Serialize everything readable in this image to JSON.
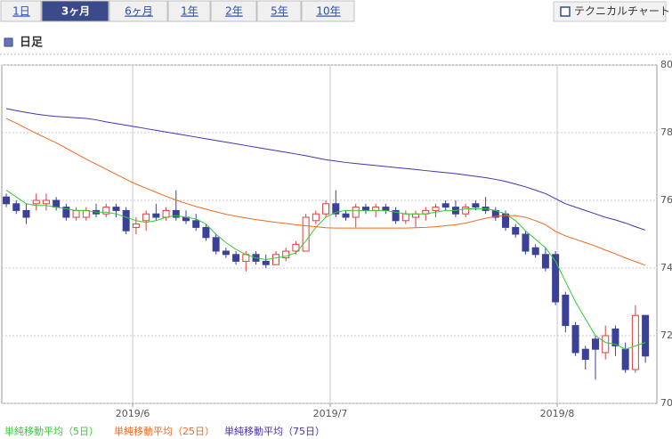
{
  "buttons": [
    "1日",
    "3ヶ月",
    "6ヶ月",
    "1年",
    "2年",
    "5年",
    "10年"
  ],
  "tool_button": "テクニカルチャート",
  "section_title": "日足",
  "chart_data": {
    "type": "candlestick",
    "categories": [
      null,
      null,
      null,
      null,
      null,
      null,
      null,
      null,
      null,
      null,
      null,
      null,
      null,
      null,
      null,
      null,
      null,
      null,
      null,
      null,
      null,
      null,
      null,
      null,
      null,
      null,
      null,
      null,
      null,
      null,
      null,
      null,
      null,
      null,
      null,
      null,
      null,
      null,
      null,
      null,
      null,
      null,
      null,
      null,
      null,
      null,
      null,
      null,
      null,
      null,
      null,
      null,
      null,
      null,
      null,
      null,
      null,
      null,
      null,
      null,
      null,
      null,
      null,
      null,
      null
    ],
    "open": [
      76.1,
      75.9,
      75.7,
      75.9,
      75.9,
      76.0,
      75.8,
      75.5,
      75.5,
      75.7,
      75.6,
      75.8,
      75.7,
      75.2,
      75.4,
      75.6,
      75.5,
      75.7,
      75.5,
      75.4,
      75.2,
      74.9,
      74.5,
      74.4,
      74.2,
      74.4,
      74.2,
      74.1,
      74.3,
      74.5,
      74.5,
      75.4,
      75.6,
      75.9,
      75.6,
      75.5,
      75.8,
      75.7,
      75.8,
      75.7,
      75.4,
      75.5,
      75.6,
      75.7,
      75.9,
      75.8,
      75.6,
      75.9,
      75.8,
      75.7,
      75.6,
      75.2,
      75.0,
      74.6,
      74.4,
      74.4,
      73.2,
      72.3,
      71.6,
      71.9,
      71.5,
      72.2,
      71.6,
      71.0,
      72.6
    ],
    "high": [
      76.2,
      76.0,
      75.9,
      76.2,
      76.2,
      76.1,
      75.9,
      75.8,
      75.8,
      75.9,
      75.9,
      75.9,
      75.8,
      75.5,
      75.7,
      75.9,
      75.8,
      76.3,
      75.7,
      75.6,
      75.3,
      75.0,
      74.6,
      74.5,
      74.5,
      74.5,
      74.4,
      74.5,
      74.6,
      74.8,
      75.6,
      75.7,
      76.0,
      76.3,
      75.7,
      75.9,
      75.9,
      75.9,
      75.9,
      75.8,
      75.7,
      75.7,
      75.8,
      75.9,
      76.0,
      76.0,
      75.9,
      76.0,
      76.1,
      75.8,
      75.7,
      75.3,
      75.1,
      74.7,
      74.6,
      74.5,
      73.3,
      72.4,
      71.7,
      72.0,
      72.3,
      72.3,
      71.8,
      72.9,
      72.6
    ],
    "low": [
      75.8,
      75.6,
      75.3,
      75.7,
      75.7,
      75.7,
      75.4,
      75.4,
      75.4,
      75.5,
      75.5,
      75.5,
      75.0,
      75.0,
      75.1,
      75.4,
      75.4,
      75.4,
      75.3,
      75.1,
      74.8,
      74.4,
      74.3,
      74.1,
      73.9,
      74.1,
      74.0,
      74.1,
      74.2,
      74.4,
      74.5,
      75.3,
      75.5,
      75.5,
      75.4,
      75.2,
      75.6,
      75.5,
      75.6,
      75.3,
      75.3,
      75.2,
      75.4,
      75.5,
      75.7,
      75.5,
      75.5,
      75.7,
      75.6,
      75.4,
      75.1,
      74.9,
      74.4,
      74.3,
      73.9,
      72.9,
      72.1,
      71.4,
      71.0,
      70.7,
      71.3,
      71.4,
      70.9,
      70.9,
      71.2
    ],
    "close": [
      75.9,
      75.7,
      75.5,
      76.0,
      76.0,
      75.8,
      75.5,
      75.7,
      75.7,
      75.6,
      75.8,
      75.7,
      75.1,
      75.3,
      75.6,
      75.5,
      75.7,
      75.5,
      75.4,
      75.2,
      74.9,
      74.5,
      74.4,
      74.2,
      74.4,
      74.2,
      74.1,
      74.4,
      74.5,
      74.7,
      75.5,
      75.6,
      75.9,
      75.6,
      75.5,
      75.8,
      75.7,
      75.8,
      75.7,
      75.4,
      75.6,
      75.6,
      75.7,
      75.8,
      75.8,
      75.6,
      75.8,
      75.8,
      75.7,
      75.5,
      75.2,
      75.0,
      74.5,
      74.4,
      74.0,
      73.0,
      72.3,
      71.5,
      71.3,
      71.6,
      72.0,
      71.7,
      71.0,
      72.6,
      71.4
    ],
    "up_color": "#e03c3c",
    "down_color": "#3b4199",
    "series": [
      {
        "name": "単純移動平均（5日）",
        "color": "#33cc33",
        "values": [
          76.3,
          76.1,
          75.9,
          75.85,
          75.85,
          75.8,
          75.75,
          75.7,
          75.7,
          75.65,
          75.65,
          75.6,
          75.5,
          75.4,
          75.35,
          75.4,
          75.5,
          75.55,
          75.5,
          75.45,
          75.3,
          75.0,
          74.75,
          74.55,
          74.4,
          74.3,
          74.25,
          74.3,
          74.35,
          74.45,
          74.8,
          75.2,
          75.5,
          75.65,
          75.7,
          75.7,
          75.7,
          75.7,
          75.7,
          75.65,
          75.6,
          75.6,
          75.6,
          75.65,
          75.7,
          75.7,
          75.75,
          75.75,
          75.75,
          75.7,
          75.6,
          75.4,
          75.1,
          74.85,
          74.6,
          74.2,
          73.6,
          73.0,
          72.5,
          72.0,
          71.8,
          71.75,
          71.6,
          71.7,
          71.8
        ]
      },
      {
        "name": "単純移動平均（25日）",
        "color": "#ee6a1e",
        "values": [
          78.42,
          78.28,
          78.13,
          77.98,
          77.84,
          77.7,
          77.54,
          77.38,
          77.22,
          77.07,
          76.92,
          76.77,
          76.62,
          76.48,
          76.36,
          76.24,
          76.12,
          76.01,
          75.91,
          75.82,
          75.74,
          75.66,
          75.59,
          75.53,
          75.48,
          75.43,
          75.39,
          75.35,
          75.32,
          75.28,
          75.25,
          75.22,
          75.19,
          75.18,
          75.18,
          75.18,
          75.18,
          75.18,
          75.18,
          75.18,
          75.18,
          75.19,
          75.2,
          75.22,
          75.25,
          75.28,
          75.33,
          75.4,
          75.47,
          75.53,
          75.55,
          75.55,
          75.5,
          75.4,
          75.28,
          75.08,
          74.95,
          74.85,
          74.75,
          74.65,
          74.53,
          74.42,
          74.3,
          74.19,
          74.08
        ]
      },
      {
        "name": "単純移動平均（75日）",
        "color": "#4a2fb0",
        "values": [
          78.71,
          78.65,
          78.6,
          78.55,
          78.51,
          78.48,
          78.46,
          78.44,
          78.42,
          78.38,
          78.32,
          78.27,
          78.22,
          78.17,
          78.12,
          78.07,
          78.02,
          77.97,
          77.92,
          77.87,
          77.82,
          77.77,
          77.72,
          77.67,
          77.62,
          77.57,
          77.52,
          77.47,
          77.42,
          77.37,
          77.32,
          77.26,
          77.2,
          77.16,
          77.12,
          77.09,
          77.06,
          77.03,
          77.0,
          76.97,
          76.94,
          76.91,
          76.88,
          76.85,
          76.82,
          76.79,
          76.75,
          76.71,
          76.67,
          76.62,
          76.56,
          76.48,
          76.4,
          76.3,
          76.2,
          76.05,
          75.9,
          75.8,
          75.7,
          75.6,
          75.5,
          75.42,
          75.33,
          75.22,
          75.12
        ]
      }
    ],
    "xlim": [
      -0.45,
      65.15
    ],
    "xticks": [
      {
        "value": 12.66,
        "label": "2019/6"
      },
      {
        "value": 32.44,
        "label": "2019/7"
      },
      {
        "value": 55.17,
        "label": "2019/8"
      }
    ],
    "ylim": [
      70,
      80
    ],
    "yticks": [
      70,
      72,
      74,
      76,
      78,
      80
    ],
    "grid": true
  }
}
